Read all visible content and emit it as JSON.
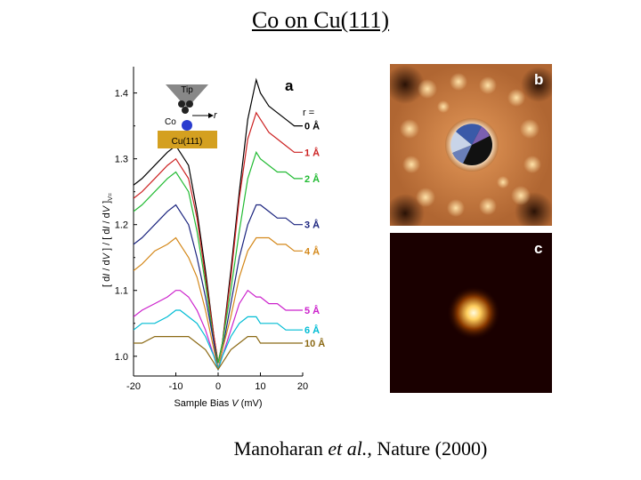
{
  "slide": {
    "title": "Co on Cu(111)",
    "caption_author": "Manoharan",
    "caption_etal": "et al.",
    "caption_journal": ", Nature (2000)"
  },
  "panels": {
    "a_label": "a",
    "b_label": "b",
    "c_label": "c",
    "inset": {
      "tip": "Tip",
      "co": "Co",
      "r": "r",
      "substrate": "Cu(111)"
    },
    "r_header": "r ="
  },
  "chart_data": {
    "type": "line",
    "title": "",
    "xlabel": "Sample Bias V (mV)",
    "ylabel": "[ dI / dV ] / [ dI / dV ]V=",
    "xlim": [
      -20,
      20
    ],
    "ylim": [
      0.97,
      1.44
    ],
    "xticks": [
      "-20",
      "-10",
      "0",
      "10",
      "20"
    ],
    "yticks": [
      "1.0",
      "1.1",
      "1.2",
      "1.3",
      "1.4"
    ],
    "x": [
      -20,
      -18,
      -15,
      -12,
      -10,
      -9,
      -7,
      -5,
      -3,
      -1,
      0,
      1,
      3,
      5,
      7,
      9,
      10,
      12,
      14,
      16,
      18,
      20
    ],
    "series": [
      {
        "name": "0 Å",
        "label": "0 Å",
        "color": "#000000",
        "values": [
          1.26,
          1.27,
          1.29,
          1.31,
          1.32,
          1.31,
          1.29,
          1.22,
          1.13,
          1.03,
          0.99,
          1.02,
          1.13,
          1.25,
          1.36,
          1.42,
          1.4,
          1.38,
          1.37,
          1.36,
          1.35,
          1.35
        ]
      },
      {
        "name": "1 Å",
        "label": "1 Å",
        "color": "#cc2222",
        "values": [
          1.24,
          1.25,
          1.27,
          1.29,
          1.3,
          1.29,
          1.27,
          1.21,
          1.12,
          1.03,
          0.99,
          1.02,
          1.12,
          1.24,
          1.33,
          1.37,
          1.36,
          1.34,
          1.33,
          1.32,
          1.31,
          1.31
        ]
      },
      {
        "name": "2 Å",
        "label": "2 Å",
        "color": "#22bb33",
        "values": [
          1.22,
          1.23,
          1.25,
          1.27,
          1.28,
          1.27,
          1.25,
          1.19,
          1.11,
          1.02,
          0.99,
          1.02,
          1.1,
          1.19,
          1.27,
          1.31,
          1.3,
          1.29,
          1.28,
          1.28,
          1.27,
          1.27
        ]
      },
      {
        "name": "3 Å",
        "label": "3 Å",
        "color": "#1a237e",
        "values": [
          1.17,
          1.18,
          1.2,
          1.22,
          1.23,
          1.22,
          1.2,
          1.15,
          1.09,
          1.02,
          0.98,
          1.01,
          1.08,
          1.15,
          1.2,
          1.23,
          1.23,
          1.22,
          1.21,
          1.21,
          1.2,
          1.2
        ]
      },
      {
        "name": "4 Å",
        "label": "4 Å",
        "color": "#d4881a",
        "values": [
          1.13,
          1.14,
          1.16,
          1.17,
          1.18,
          1.17,
          1.15,
          1.12,
          1.07,
          1.01,
          0.98,
          1.01,
          1.06,
          1.12,
          1.16,
          1.18,
          1.18,
          1.18,
          1.17,
          1.17,
          1.16,
          1.16
        ]
      },
      {
        "name": "5 Å",
        "label": "5 Å",
        "color": "#cc22cc",
        "values": [
          1.06,
          1.07,
          1.08,
          1.09,
          1.1,
          1.1,
          1.09,
          1.07,
          1.04,
          1.0,
          0.98,
          1.0,
          1.04,
          1.08,
          1.1,
          1.09,
          1.09,
          1.08,
          1.08,
          1.07,
          1.07,
          1.07
        ]
      },
      {
        "name": "6 Å",
        "label": "6 Å",
        "color": "#00bcd4",
        "values": [
          1.04,
          1.05,
          1.05,
          1.06,
          1.07,
          1.07,
          1.06,
          1.05,
          1.03,
          1.0,
          0.98,
          1.0,
          1.03,
          1.05,
          1.06,
          1.06,
          1.05,
          1.05,
          1.05,
          1.04,
          1.04,
          1.04
        ]
      },
      {
        "name": "10 Å",
        "label": "10 Å",
        "color": "#8b6914",
        "values": [
          1.02,
          1.02,
          1.03,
          1.03,
          1.03,
          1.03,
          1.03,
          1.02,
          1.01,
          0.99,
          0.98,
          0.99,
          1.01,
          1.02,
          1.03,
          1.03,
          1.02,
          1.02,
          1.02,
          1.02,
          1.02,
          1.02
        ]
      }
    ]
  }
}
